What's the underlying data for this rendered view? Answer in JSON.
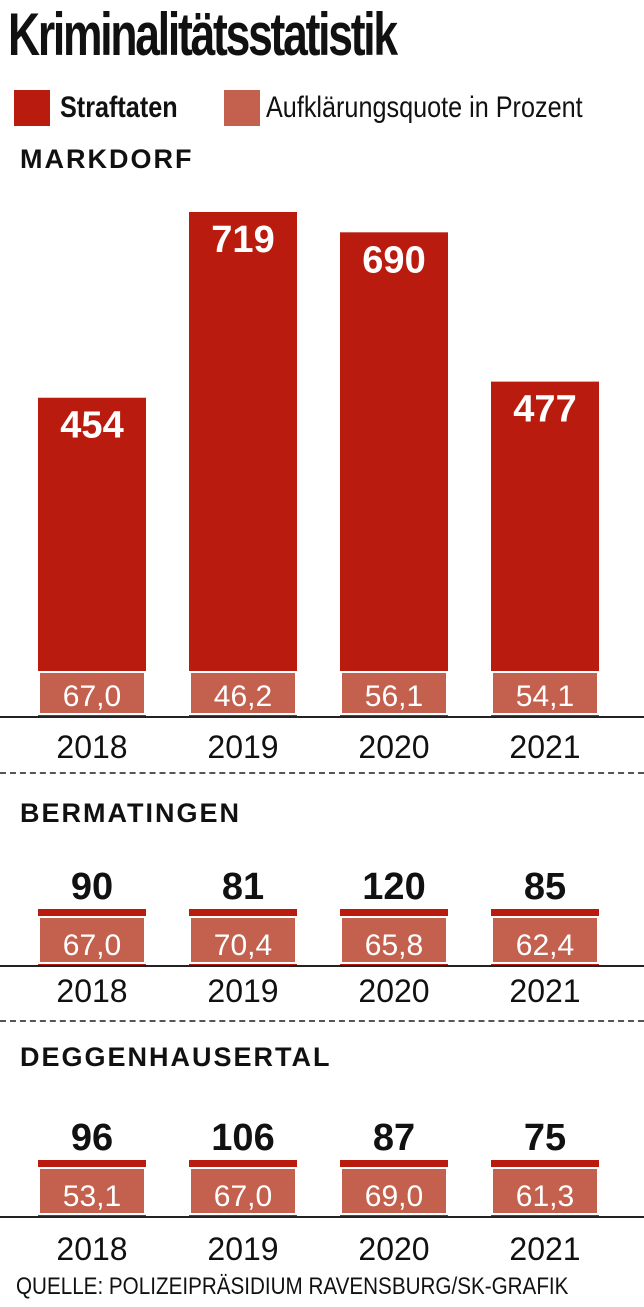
{
  "title": "Kriminalitätsstatistik",
  "legend": [
    {
      "label": "Straftaten",
      "color": "#b91c0e"
    },
    {
      "label": "Aufklärungsquote in Prozent",
      "color": "#c4614e"
    }
  ],
  "colors": {
    "straftaten": "#b91c0e",
    "quote": "#c4614e",
    "axis": "#222222"
  },
  "source": "QUELLE: POLIZEIPRÄSIDIUM RAVENSBURG/SK-GRAFIK",
  "chart_data": [
    {
      "type": "bar",
      "title": "MARKDORF",
      "categories": [
        "2018",
        "2019",
        "2020",
        "2021"
      ],
      "series": [
        {
          "name": "Straftaten",
          "values": [
            454,
            719,
            690,
            477
          ]
        },
        {
          "name": "Aufklärungsquote in Prozent",
          "values": [
            67.0,
            46.2,
            56.1,
            54.1
          ]
        }
      ],
      "value_labels": [
        "454",
        "719",
        "690",
        "477"
      ],
      "quote_labels": [
        "67,0",
        "46,2",
        "56,1",
        "54,1"
      ]
    },
    {
      "type": "bar",
      "title": "BERMATINGEN",
      "categories": [
        "2018",
        "2019",
        "2020",
        "2021"
      ],
      "series": [
        {
          "name": "Straftaten",
          "values": [
            90,
            81,
            120,
            85
          ]
        },
        {
          "name": "Aufklärungsquote in Prozent",
          "values": [
            67.0,
            70.4,
            65.8,
            62.4
          ]
        }
      ],
      "value_labels": [
        "90",
        "81",
        "120",
        "85"
      ],
      "quote_labels": [
        "67,0",
        "70,4",
        "65,8",
        "62,4"
      ]
    },
    {
      "type": "bar",
      "title": "DEGGENHAUSERTAL",
      "categories": [
        "2018",
        "2019",
        "2020",
        "2021"
      ],
      "series": [
        {
          "name": "Straftaten",
          "values": [
            96,
            106,
            87,
            75
          ]
        },
        {
          "name": "Aufklärungsquote in Prozent",
          "values": [
            53.1,
            67.0,
            69.0,
            61.3
          ]
        }
      ],
      "value_labels": [
        "96",
        "106",
        "87",
        "75"
      ],
      "quote_labels": [
        "53,1",
        "67,0",
        "69,0",
        "61,3"
      ]
    }
  ]
}
